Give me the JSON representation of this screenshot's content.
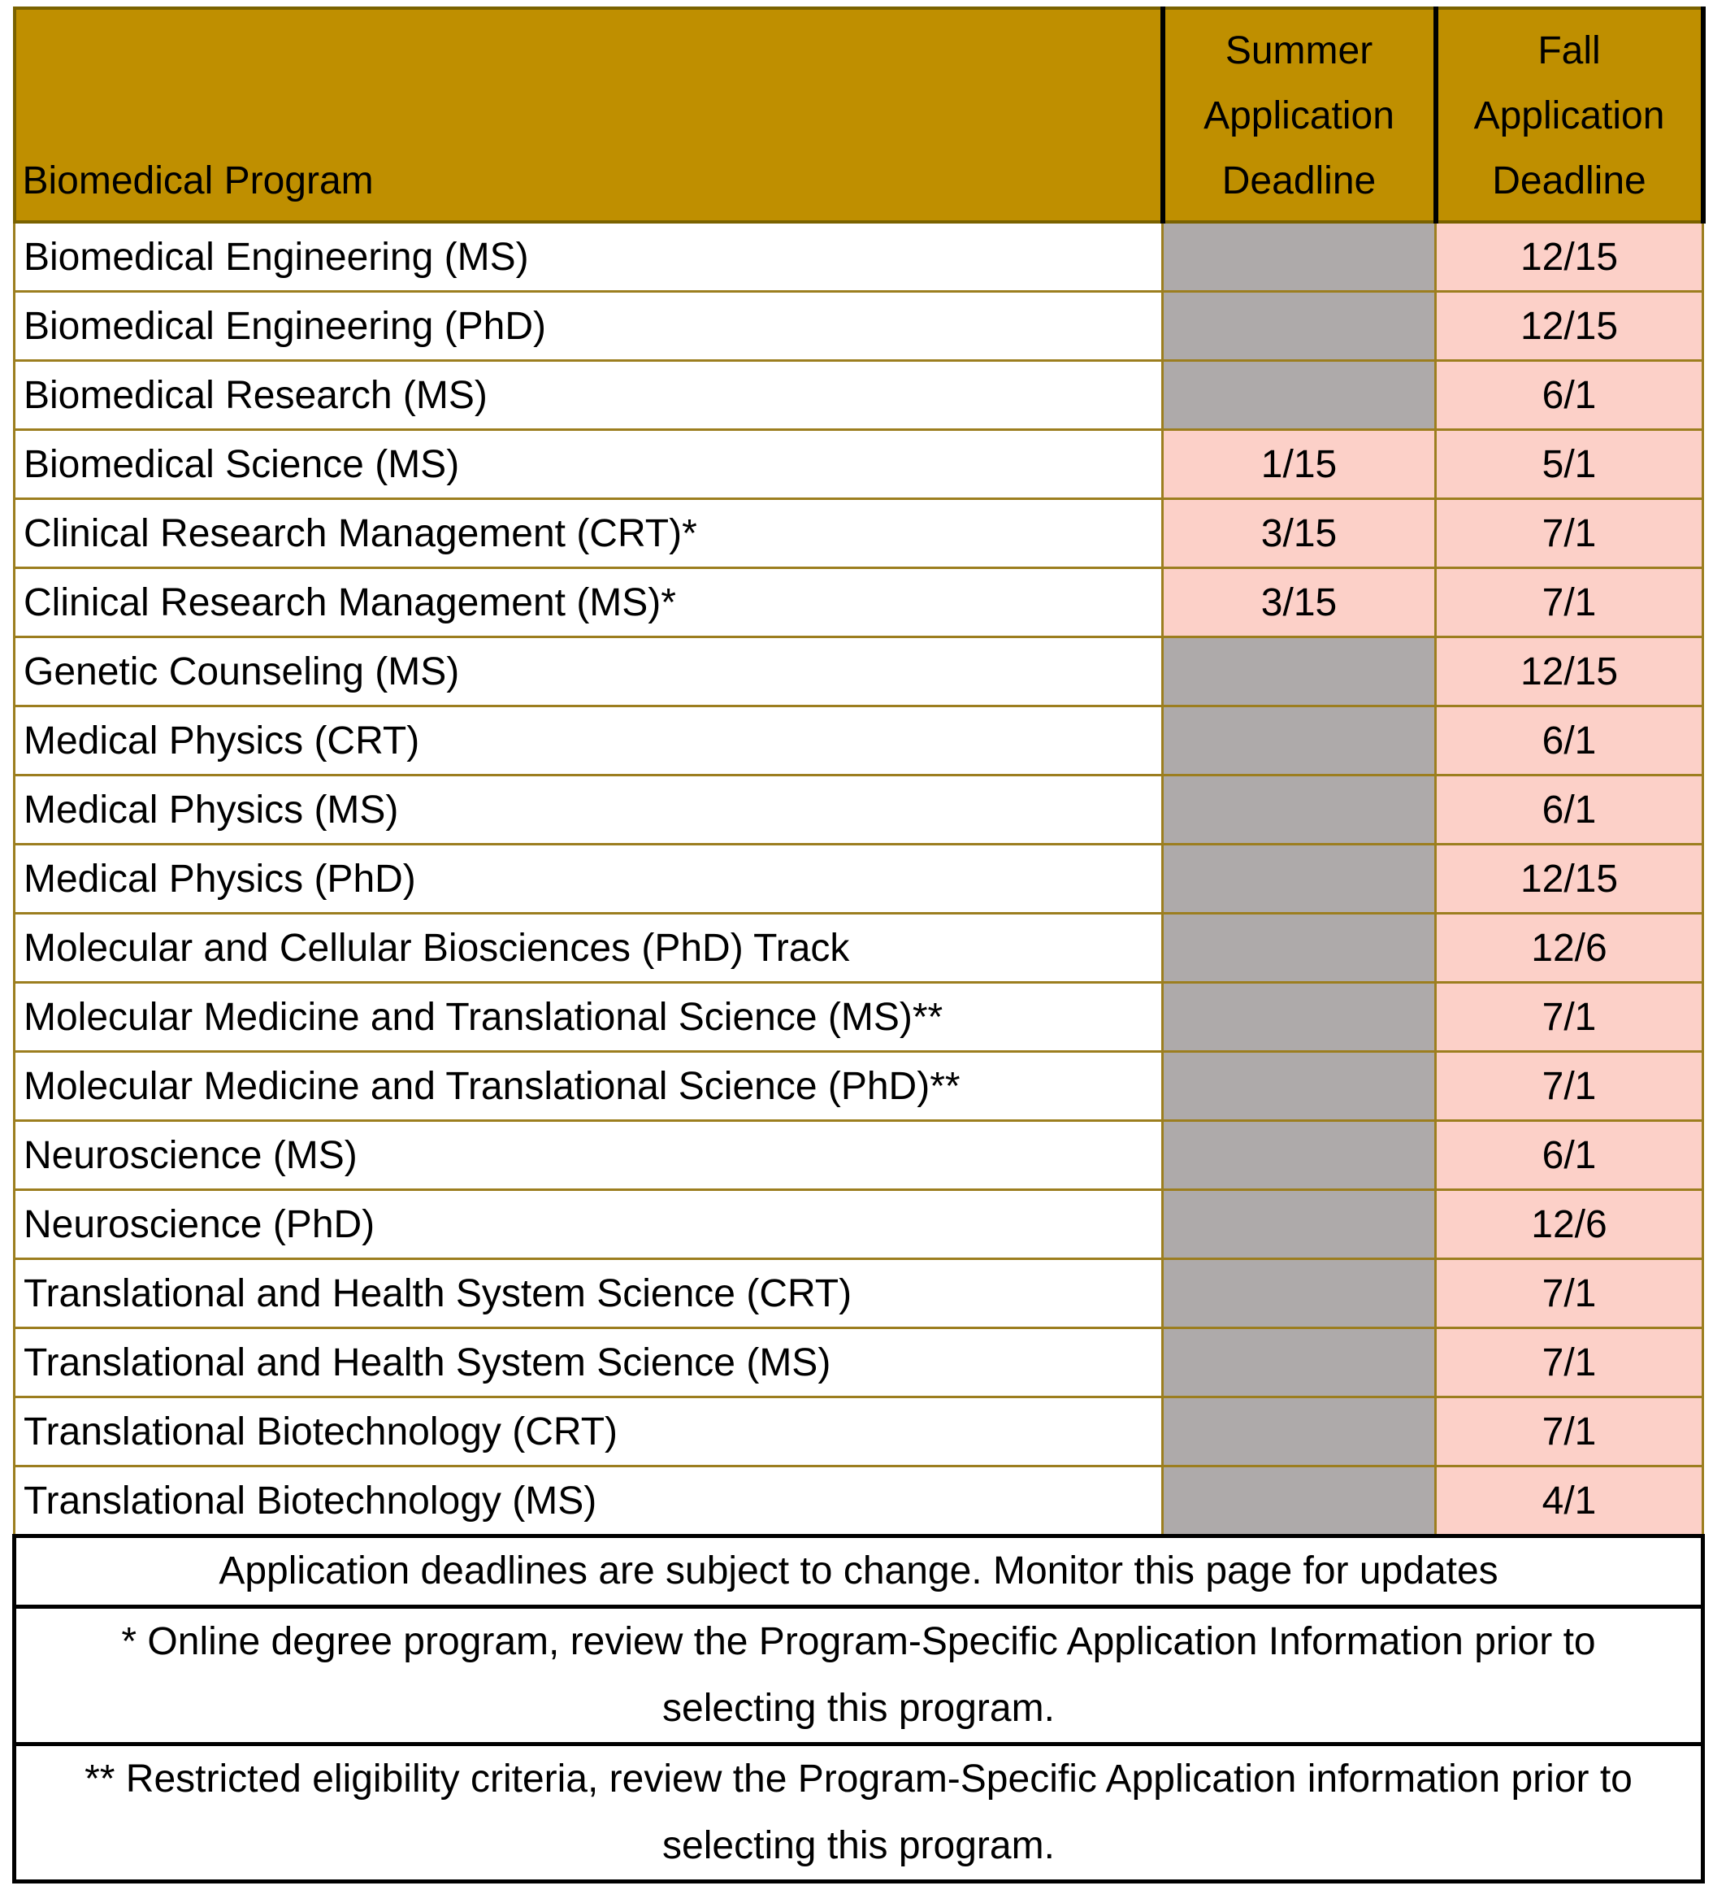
{
  "table": {
    "header": [
      "Biomedical Program",
      "Summer Application Deadline",
      "Fall Application Deadline"
    ],
    "rows": [
      [
        "Biomedical Engineering (MS)",
        null,
        "12/15"
      ],
      [
        "Biomedical Engineering (PhD)",
        null,
        "12/15"
      ],
      [
        "Biomedical Research (MS)",
        null,
        "6/1"
      ],
      [
        "Biomedical Science (MS)",
        "1/15",
        "5/1"
      ],
      [
        "Clinical Research Management (CRT)*",
        "3/15",
        "7/1"
      ],
      [
        "Clinical Research Management (MS)*",
        "3/15",
        "7/1"
      ],
      [
        "Genetic Counseling (MS)",
        null,
        "12/15"
      ],
      [
        "Medical Physics (CRT)",
        null,
        "6/1"
      ],
      [
        "Medical Physics (MS)",
        null,
        "6/1"
      ],
      [
        "Medical Physics (PhD)",
        null,
        "12/15"
      ],
      [
        "Molecular and Cellular Biosciences (PhD) Track",
        null,
        "12/6"
      ],
      [
        "Molecular Medicine and Translational Science (MS)**",
        null,
        "7/1"
      ],
      [
        "Molecular Medicine and Translational Science (PhD)**",
        null,
        "7/1"
      ],
      [
        "Neuroscience (MS)",
        null,
        "6/1"
      ],
      [
        "Neuroscience (PhD)",
        null,
        "12/6"
      ],
      [
        "Translational and Health System Science (CRT)",
        null,
        "7/1"
      ],
      [
        "Translational and Health System Science (MS)",
        null,
        "7/1"
      ],
      [
        "Translational Biotechnology (CRT)",
        null,
        "7/1"
      ],
      [
        "Translational Biotechnology (MS)",
        null,
        "4/1"
      ]
    ],
    "notes": [
      "Application deadlines are subject to change. Monitor this page for updates",
      "* Online degree program, review the Program-Specific Application Information prior to selecting this program.",
      "** Restricted eligibility criteria, review the Program-Specific Application information prior to selecting this program."
    ]
  }
}
